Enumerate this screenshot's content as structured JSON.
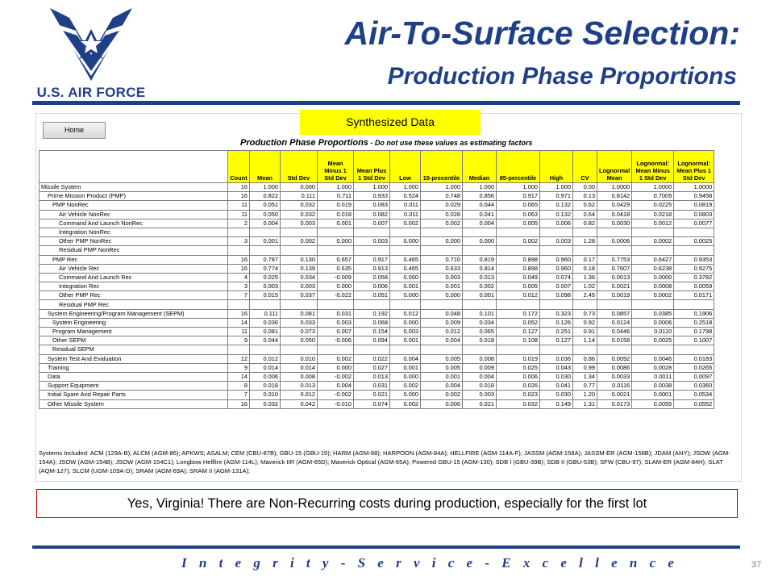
{
  "logo": {
    "text": "U.S. AIR FORCE",
    "color": "#1f3f87",
    "icon": "air-force-symbol-icon"
  },
  "title": {
    "line1": "Air-To-Surface Selection:",
    "line2": "Production Phase Proportions"
  },
  "sheet": {
    "home_button": "Home",
    "synth_label": "Synthesized Data",
    "table_title": "Production Phase Proportions",
    "table_subtitle": " - Do not use these values as estimating factors",
    "columns": [
      "",
      "Count",
      "Mean",
      "Std Dev",
      "Mean Minus 1 Std Dev",
      "Mean Plus 1 Std Dev",
      "Low",
      "15-precentile",
      "Median",
      "85-percentile",
      "High",
      "CV",
      "Lognormal Mean",
      "Lognormal: Mean Minus 1 Std Dev",
      "Lognormal: Mean Plus 1 Std Dev"
    ],
    "rows": [
      {
        "name": "Missile System",
        "indent": 0,
        "v": [
          "16",
          "1.000",
          "0.000",
          "1.000",
          "1.000",
          "1.000",
          "1.000",
          "1.000",
          "1.000",
          "1.000",
          "0.00",
          "1.0000",
          "1.0000",
          "1.0000"
        ]
      },
      {
        "name": "Prime Mission Product (PMP)",
        "indent": 1,
        "v": [
          "16",
          "0.822",
          "0.111",
          "0.711",
          "0.933",
          "0.524",
          "0.748",
          "0.856",
          "0.917",
          "0.971",
          "0.13",
          "0.8142",
          "0.7009",
          "0.9458"
        ]
      },
      {
        "name": "PMP NonRec",
        "indent": 2,
        "v": [
          "11",
          "0.051",
          "0.032",
          "0.019",
          "0.083",
          "0.011",
          "0.029",
          "0.044",
          "0.065",
          "0.132",
          "0.62",
          "0.0429",
          "0.0225",
          "0.0819"
        ]
      },
      {
        "name": "Air Vehicle NonRec",
        "indent": 3,
        "v": [
          "11",
          "0.050",
          "0.032",
          "0.018",
          "0.082",
          "0.011",
          "0.028",
          "0.041",
          "0.063",
          "0.132",
          "0.64",
          "0.0418",
          "0.0218",
          "0.0803"
        ]
      },
      {
        "name": "Command And Launch NonRec",
        "indent": 3,
        "v": [
          "2",
          "0.004",
          "0.003",
          "0.001",
          "0.007",
          "0.002",
          "0.002",
          "0.004",
          "0.005",
          "0.006",
          "0.82",
          "0.0030",
          "0.0012",
          "0.0077"
        ]
      },
      {
        "name": "Integration NonRec",
        "indent": 3,
        "v": [
          "",
          "",
          "",
          "",
          "",
          "",
          "",
          "",
          "",
          "",
          "",
          "",
          "",
          ""
        ]
      },
      {
        "name": "Other PMP NonRec",
        "indent": 3,
        "v": [
          "3",
          "0.001",
          "0.002",
          "0.000",
          "0.003",
          "0.000",
          "0.000",
          "0.000",
          "0.002",
          "0.003",
          "1.28",
          "0.0006",
          "0.0002",
          "0.0025"
        ]
      },
      {
        "name": "Residual PMP NonRec",
        "indent": 3,
        "v": [
          "",
          "",
          "",
          "",
          "",
          "",
          "",
          "",
          "",
          "",
          "",
          "",
          "",
          ""
        ]
      },
      {
        "name": "PMP Rec",
        "indent": 2,
        "v": [
          "16",
          "0.787",
          "0.130",
          "0.657",
          "0.917",
          "0.465",
          "0.710",
          "0.819",
          "0.898",
          "0.960",
          "0.17",
          "0.7753",
          "0.6427",
          "0.9353"
        ]
      },
      {
        "name": "Air Vehicle Rec",
        "indent": 3,
        "v": [
          "16",
          "0.774",
          "0.139",
          "0.635",
          "0.913",
          "0.465",
          "0.633",
          "0.814",
          "0.898",
          "0.960",
          "0.18",
          "0.7607",
          "0.6238",
          "0.9275"
        ]
      },
      {
        "name": "Command And Launch Rec",
        "indent": 3,
        "v": [
          "4",
          "0.025",
          "0.034",
          "-0.009",
          "0.058",
          "0.000",
          "0.003",
          "0.013",
          "0.049",
          "0.074",
          "1.36",
          "0.0013",
          "0.0000",
          "0.3782"
        ]
      },
      {
        "name": "Integration Rec",
        "indent": 3,
        "v": [
          "3",
          "0.003",
          "0.003",
          "0.000",
          "0.006",
          "0.001",
          "0.001",
          "0.002",
          "0.005",
          "0.007",
          "1.02",
          "0.0021",
          "0.0008",
          "0.0059"
        ]
      },
      {
        "name": "Other PMP Rec",
        "indent": 3,
        "v": [
          "7",
          "0.015",
          "0.037",
          "-0.022",
          "0.051",
          "0.000",
          "0.000",
          "0.001",
          "0.012",
          "0.098",
          "2.45",
          "0.0019",
          "0.0002",
          "0.0171"
        ]
      },
      {
        "name": "Residual PMP Rec",
        "indent": 3,
        "v": [
          "",
          "",
          "",
          "",
          "",
          "",
          "",
          "",
          "",
          "",
          "",
          "",
          "",
          ""
        ]
      },
      {
        "name": "System Engineering/Program Management (SEPM)",
        "indent": 1,
        "v": [
          "16",
          "0.111",
          "0.081",
          "0.031",
          "0.192",
          "0.012",
          "0.048",
          "0.101",
          "0.172",
          "0.323",
          "0.73",
          "0.0857",
          "0.0385",
          "0.1906"
        ]
      },
      {
        "name": "System Engineering",
        "indent": 2,
        "v": [
          "14",
          "0.036",
          "0.033",
          "0.003",
          "0.068",
          "0.000",
          "0.009",
          "0.034",
          "0.052",
          "0.126",
          "0.92",
          "0.0124",
          "0.0006",
          "0.2518"
        ]
      },
      {
        "name": "Program Management",
        "indent": 2,
        "v": [
          "11",
          "0.081",
          "0.073",
          "0.007",
          "0.154",
          "0.003",
          "0.012",
          "0.065",
          "0.127",
          "0.251",
          "0.91",
          "0.0446",
          "0.0110",
          "0.1798"
        ]
      },
      {
        "name": "Other SEPM",
        "indent": 2,
        "v": [
          "9",
          "0.044",
          "0.050",
          "-0.006",
          "0.094",
          "0.001",
          "0.004",
          "0.018",
          "0.108",
          "0.127",
          "1.14",
          "0.0158",
          "0.0025",
          "0.1007"
        ]
      },
      {
        "name": "Residual SEPM",
        "indent": 2,
        "v": [
          "",
          "",
          "",
          "",
          "",
          "",
          "",
          "",
          "",
          "",
          "",
          "",
          "",
          ""
        ]
      },
      {
        "name": "System Test And Evaluation",
        "indent": 1,
        "v": [
          "12",
          "0.012",
          "0.010",
          "0.002",
          "0.022",
          "0.004",
          "0.005",
          "0.008",
          "0.019",
          "0.036",
          "0.86",
          "0.0092",
          "0.0046",
          "0.0183"
        ]
      },
      {
        "name": "Training",
        "indent": 1,
        "v": [
          "9",
          "0.014",
          "0.014",
          "0.000",
          "0.027",
          "0.001",
          "0.005",
          "0.009",
          "0.025",
          "0.043",
          "0.99",
          "0.0086",
          "0.0028",
          "0.0265"
        ]
      },
      {
        "name": "Data",
        "indent": 1,
        "v": [
          "14",
          "0.006",
          "0.008",
          "-0.002",
          "0.013",
          "0.000",
          "0.001",
          "0.004",
          "0.006",
          "0.030",
          "1.34",
          "0.0033",
          "0.0011",
          "0.0097"
        ]
      },
      {
        "name": "Support Equipment",
        "indent": 1,
        "v": [
          "8",
          "0.018",
          "0.013",
          "0.004",
          "0.031",
          "0.002",
          "0.004",
          "0.018",
          "0.026",
          "0.041",
          "0.77",
          "0.0116",
          "0.0038",
          "0.0360"
        ]
      },
      {
        "name": "Initial Spare And Repair Parts",
        "indent": 1,
        "v": [
          "7",
          "0.010",
          "0.012",
          "-0.002",
          "0.021",
          "0.000",
          "0.002",
          "0.003",
          "0.023",
          "0.030",
          "1.20",
          "0.0021",
          "0.0001",
          "0.0534"
        ]
      },
      {
        "name": "Other Missile System",
        "indent": 1,
        "v": [
          "16",
          "0.032",
          "0.042",
          "-0.010",
          "0.074",
          "0.002",
          "0.006",
          "0.021",
          "0.032",
          "0.149",
          "1.31",
          "0.0173",
          "0.0055",
          "0.0552"
        ]
      }
    ],
    "systems_text": "Systems Included: ACM (129A-B); ALCM (AGM-86); APKWS; ASALM; CEM (CBU-87B); GBU-15 (GBU-15); HARM (AGM-88); HARPOON (AGM-84A); HELLFIRE (AGM-114A-F); JASSM (AGM-158A); JASSM-ER (AGM-158B); JDAM (ANY); JSOW (AGM-154A); JSOW (AGM-154B); JSOW (AGM-154C1); Longbow Hellfire (AGM-114L); Maverick IIR (AGM-65D); Maverick Optical (AGM-65A); Powered GBU-15 (AGM-130); SDB I (GBU-39B); SDB II (GBU-53B); SFW (CBU-97); SLAM-ER (AGM-84H); SLAT (AQM-127); SLCM (UGM-109A-D); SRAM (AGM-69A); SRAM II (AGM-131A);"
  },
  "callout": "Yes, Virginia! There are Non-Recurring costs during production, especially for the first lot",
  "footer": {
    "motto": "I n t e g r i t y  -  S e r v i c e  -  E x c e l l e n c e",
    "page": "37"
  }
}
